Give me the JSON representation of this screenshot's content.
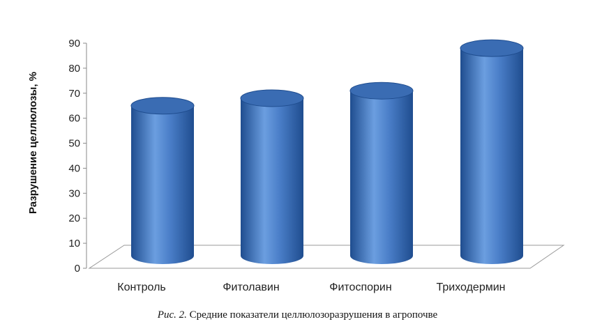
{
  "caption": {
    "lead": "Рис. 2.",
    "text": "Средние показатели целлюлозоразрушения в агропочве"
  },
  "chart_data": {
    "type": "bar",
    "style": "3d-cylinder",
    "categories": [
      "Контроль",
      "Фитолавин",
      "Фитоспорин",
      "Триходермин"
    ],
    "values": [
      65,
      68,
      71,
      88
    ],
    "ylabel": "Разрушение целлюлозы, %",
    "ylim": [
      0,
      90
    ],
    "yticks": [
      "0",
      "10",
      "20",
      "30",
      "40",
      "50",
      "60",
      "70",
      "80",
      "90"
    ],
    "grid": false,
    "legend": "none",
    "colors": {
      "bar": "#4a7ec8",
      "bar_dark": "#1f4d8f",
      "bar_top": "#3a6cb3"
    }
  }
}
